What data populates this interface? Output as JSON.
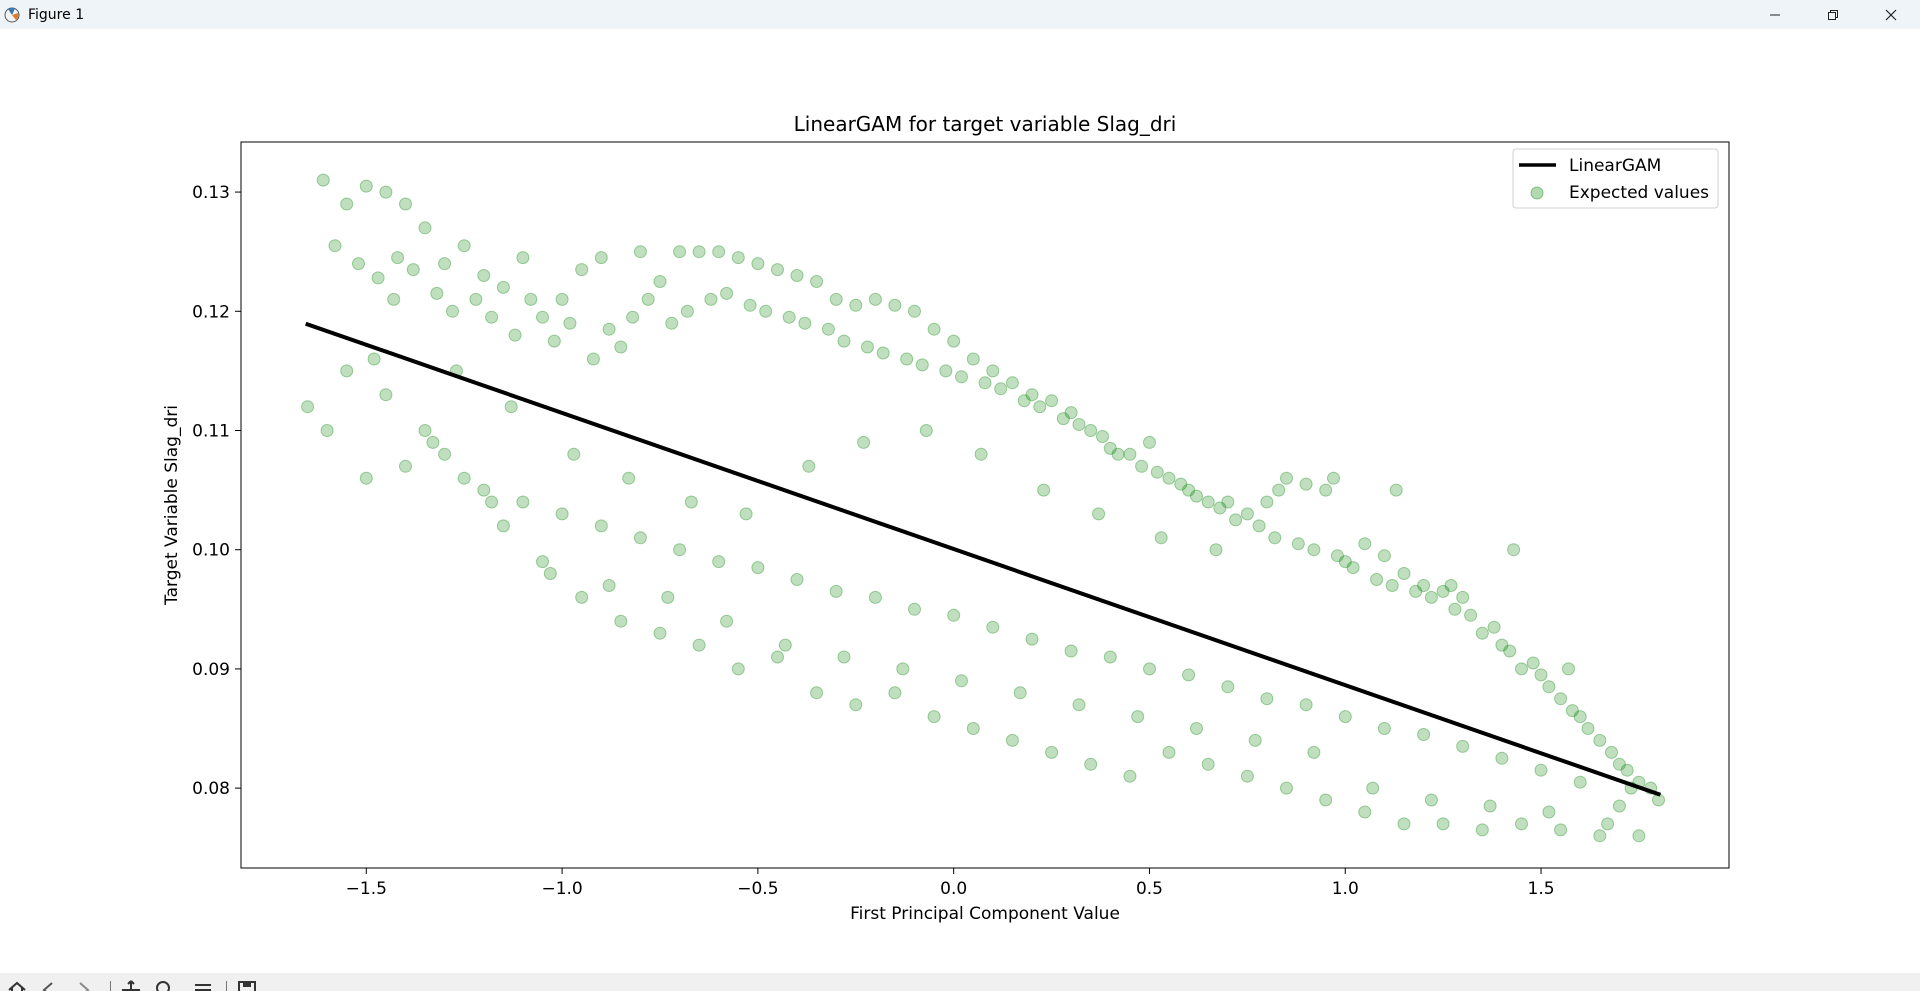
{
  "window": {
    "title": "Figure 1",
    "app_icon": "matplotlib-icon"
  },
  "window_controls": [
    "minimize-icon",
    "restore-icon",
    "close-icon"
  ],
  "toolbar": {
    "buttons": [
      "home-icon",
      "back-icon",
      "forward-icon",
      "pan-icon",
      "zoom-icon",
      "configure-subplots-icon",
      "save-icon"
    ]
  },
  "chart_data": {
    "type": "scatter",
    "title": "LinearGAM for target variable Slag_dri",
    "xlabel": "First Principal Component Value",
    "ylabel": "Target Variable Slag_dri",
    "xlim": [
      -1.82,
      1.98
    ],
    "ylim": [
      0.0733,
      0.1342
    ],
    "xticks": [
      -1.5,
      -1.0,
      -0.5,
      0.0,
      0.5,
      1.0,
      1.5
    ],
    "xtick_labels": [
      "−1.5",
      "−1.0",
      "−0.5",
      "0.0",
      "0.5",
      "1.0",
      "1.5"
    ],
    "yticks": [
      0.08,
      0.09,
      0.1,
      0.11,
      0.12,
      0.13
    ],
    "ytick_labels": [
      "0.08",
      "0.09",
      "0.10",
      "0.11",
      "0.12",
      "0.13"
    ],
    "grid": false,
    "legend": {
      "placement": "top-right",
      "entries": [
        "LinearGAM",
        "Expected values"
      ]
    },
    "series": [
      {
        "name": "LinearGAM",
        "kind": "line",
        "color": "#000000",
        "x": [
          -1.65,
          1.8
        ],
        "y": [
          0.1189,
          0.0795
        ]
      },
      {
        "name": "Expected values",
        "kind": "scatter",
        "color": "#008000",
        "alpha": 0.25,
        "x": [
          -1.65,
          -1.61,
          -1.58,
          -1.55,
          -1.52,
          -1.5,
          -1.47,
          -1.45,
          -1.42,
          -1.4,
          -1.38,
          -1.35,
          -1.32,
          -1.3,
          -1.28,
          -1.25,
          -1.22,
          -1.2,
          -1.18,
          -1.15,
          -1.12,
          -1.1,
          -1.08,
          -1.05,
          -1.02,
          -1.0,
          -0.98,
          -0.95,
          -0.92,
          -0.9,
          -0.88,
          -0.85,
          -0.82,
          -0.8,
          -0.78,
          -0.75,
          -0.72,
          -0.7,
          -0.68,
          -0.65,
          -0.62,
          -0.6,
          -0.58,
          -0.55,
          -0.52,
          -0.5,
          -0.48,
          -0.45,
          -0.42,
          -0.4,
          -0.38,
          -0.35,
          -0.32,
          -0.3,
          -0.28,
          -0.25,
          -0.22,
          -0.2,
          -0.18,
          -0.15,
          -0.12,
          -0.1,
          -0.08,
          -0.05,
          -0.02,
          0.0,
          0.02,
          0.05,
          0.08,
          0.1,
          0.12,
          0.15,
          0.18,
          0.2,
          0.22,
          0.25,
          0.28,
          0.3,
          0.32,
          0.35,
          0.38,
          0.4,
          0.42,
          0.45,
          0.48,
          0.5,
          0.52,
          0.55,
          0.58,
          0.6,
          0.62,
          0.65,
          0.68,
          0.7,
          0.72,
          0.75,
          0.78,
          0.8,
          0.82,
          0.85,
          0.88,
          0.9,
          0.92,
          0.95,
          0.98,
          1.0,
          1.02,
          1.05,
          1.08,
          1.1,
          1.12,
          1.15,
          1.18,
          1.2,
          1.22,
          1.25,
          1.28,
          1.3,
          1.32,
          1.35,
          1.38,
          1.4,
          1.42,
          1.45,
          1.48,
          1.5,
          1.52,
          1.55,
          1.58,
          1.6,
          1.62,
          1.65,
          1.68,
          1.7,
          1.72,
          1.75,
          1.78,
          1.8,
          -1.6,
          -1.5,
          -1.4,
          -1.3,
          -1.2,
          -1.1,
          -1.0,
          -0.9,
          -0.8,
          -0.7,
          -0.6,
          -0.5,
          -0.4,
          -0.3,
          -0.2,
          -0.1,
          0.0,
          0.1,
          0.2,
          0.3,
          0.4,
          0.5,
          0.6,
          0.7,
          0.8,
          0.9,
          1.0,
          1.1,
          1.2,
          1.3,
          1.4,
          1.5,
          1.6,
          1.7,
          -1.55,
          -1.45,
          -1.35,
          -1.25,
          -1.15,
          -1.05,
          -0.95,
          -0.85,
          -0.75,
          -0.65,
          -0.55,
          -0.45,
          -0.35,
          -0.25,
          -0.15,
          -0.05,
          0.05,
          0.15,
          0.25,
          0.35,
          0.45,
          0.55,
          0.65,
          0.75,
          0.85,
          0.95,
          1.05,
          1.15,
          1.25,
          1.35,
          1.45,
          1.55,
          1.65,
          1.75,
          -1.48,
          -1.33,
          -1.18,
          -1.03,
          -0.88,
          -0.73,
          -0.58,
          -0.43,
          -0.28,
          -0.13,
          0.02,
          0.17,
          0.32,
          0.47,
          0.62,
          0.77,
          0.92,
          1.07,
          1.22,
          1.37,
          1.52,
          1.67,
          -1.43,
          -1.27,
          -1.13,
          -0.97,
          -0.83,
          -0.67,
          -0.53,
          -0.37,
          -0.23,
          -0.07,
          0.07,
          0.23,
          0.37,
          0.53,
          0.67,
          0.83,
          0.97,
          1.13,
          1.27,
          1.43,
          1.57,
          1.73
        ],
        "y": [
          0.112,
          0.131,
          0.1255,
          0.129,
          0.124,
          0.1305,
          0.1228,
          0.13,
          0.1245,
          0.129,
          0.1235,
          0.127,
          0.1215,
          0.124,
          0.12,
          0.1255,
          0.121,
          0.123,
          0.1195,
          0.122,
          0.118,
          0.1245,
          0.121,
          0.1195,
          0.1175,
          0.121,
          0.119,
          0.1235,
          0.116,
          0.1245,
          0.1185,
          0.117,
          0.1195,
          0.125,
          0.121,
          0.1225,
          0.119,
          0.125,
          0.12,
          0.125,
          0.121,
          0.125,
          0.1215,
          0.1245,
          0.1205,
          0.124,
          0.12,
          0.1235,
          0.1195,
          0.123,
          0.119,
          0.1225,
          0.1185,
          0.121,
          0.1175,
          0.1205,
          0.117,
          0.121,
          0.1165,
          0.1205,
          0.116,
          0.12,
          0.1155,
          0.1185,
          0.115,
          0.1175,
          0.1145,
          0.116,
          0.114,
          0.115,
          0.1135,
          0.114,
          0.1125,
          0.113,
          0.112,
          0.1125,
          0.111,
          0.1115,
          0.1105,
          0.11,
          0.1095,
          0.1085,
          0.108,
          0.108,
          0.107,
          0.109,
          0.1065,
          0.106,
          0.1055,
          0.105,
          0.1045,
          0.104,
          0.1035,
          0.104,
          0.1025,
          0.103,
          0.102,
          0.104,
          0.101,
          0.106,
          0.1005,
          0.1055,
          0.1,
          0.105,
          0.0995,
          0.099,
          0.0985,
          0.1005,
          0.0975,
          0.0995,
          0.097,
          0.098,
          0.0965,
          0.097,
          0.096,
          0.0965,
          0.095,
          0.096,
          0.0945,
          0.093,
          0.0935,
          0.092,
          0.0915,
          0.09,
          0.0905,
          0.0895,
          0.0885,
          0.0875,
          0.0865,
          0.086,
          0.085,
          0.084,
          0.083,
          0.082,
          0.0815,
          0.0805,
          0.08,
          0.079,
          0.11,
          0.106,
          0.107,
          0.108,
          0.105,
          0.104,
          0.103,
          0.102,
          0.101,
          0.1,
          0.099,
          0.0985,
          0.0975,
          0.0965,
          0.096,
          0.095,
          0.0945,
          0.0935,
          0.0925,
          0.0915,
          0.091,
          0.09,
          0.0895,
          0.0885,
          0.0875,
          0.087,
          0.086,
          0.085,
          0.0845,
          0.0835,
          0.0825,
          0.0815,
          0.0805,
          0.0785,
          0.115,
          0.113,
          0.11,
          0.106,
          0.102,
          0.099,
          0.096,
          0.094,
          0.093,
          0.092,
          0.09,
          0.091,
          0.088,
          0.087,
          0.088,
          0.086,
          0.085,
          0.084,
          0.083,
          0.082,
          0.081,
          0.083,
          0.082,
          0.081,
          0.08,
          0.079,
          0.078,
          0.077,
          0.077,
          0.0765,
          0.077,
          0.0765,
          0.076,
          0.076,
          0.116,
          0.109,
          0.104,
          0.098,
          0.097,
          0.096,
          0.094,
          0.092,
          0.091,
          0.09,
          0.089,
          0.088,
          0.087,
          0.086,
          0.085,
          0.084,
          0.083,
          0.08,
          0.079,
          0.0785,
          0.078,
          0.077,
          0.121,
          0.115,
          0.112,
          0.108,
          0.106,
          0.104,
          0.103,
          0.107,
          0.109,
          0.11,
          0.108,
          0.105,
          0.103,
          0.101,
          0.1,
          0.105,
          0.106,
          0.105,
          0.097,
          0.1,
          0.09,
          0.08
        ]
      }
    ]
  }
}
